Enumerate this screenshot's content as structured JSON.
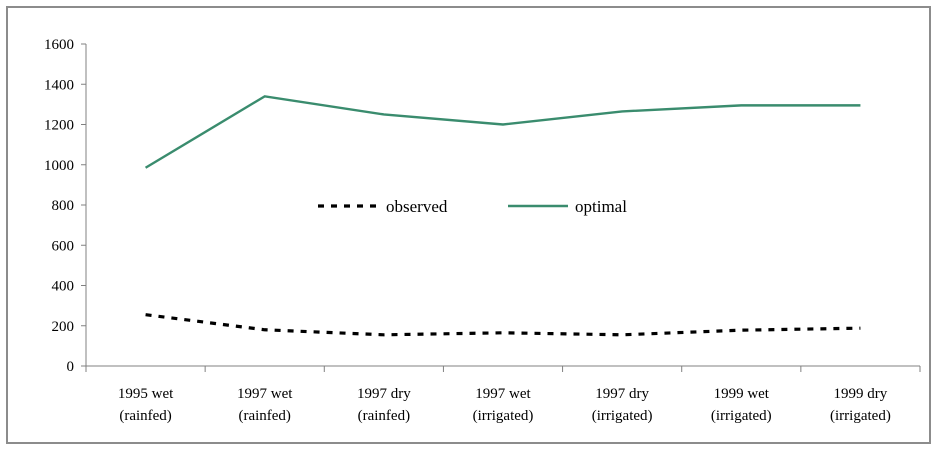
{
  "chart_data": {
    "type": "line",
    "categories": [
      [
        "1995 wet",
        "(rainfed)"
      ],
      [
        "1997 wet",
        "(rainfed)"
      ],
      [
        "1997 dry",
        "(rainfed)"
      ],
      [
        "1997 wet",
        "(irrigated)"
      ],
      [
        "1997 dry",
        "(irrigated)"
      ],
      [
        "1999 wet",
        "(irrigated)"
      ],
      [
        "1999 dry",
        "(irrigated)"
      ]
    ],
    "series": [
      {
        "name": "observed",
        "values": [
          255,
          180,
          155,
          165,
          155,
          178,
          188
        ],
        "color": "#000000",
        "style": "dashed"
      },
      {
        "name": "optimal",
        "values": [
          985,
          1340,
          1250,
          1200,
          1265,
          1295,
          1295
        ],
        "color": "#3a8c6e",
        "style": "solid"
      }
    ],
    "ylim": [
      0,
      1600
    ],
    "yticks": [
      0,
      200,
      400,
      600,
      800,
      1000,
      1200,
      1400,
      1600
    ],
    "title": "",
    "xlabel": "",
    "ylabel": "",
    "grid": false,
    "legend_placement": "center"
  }
}
